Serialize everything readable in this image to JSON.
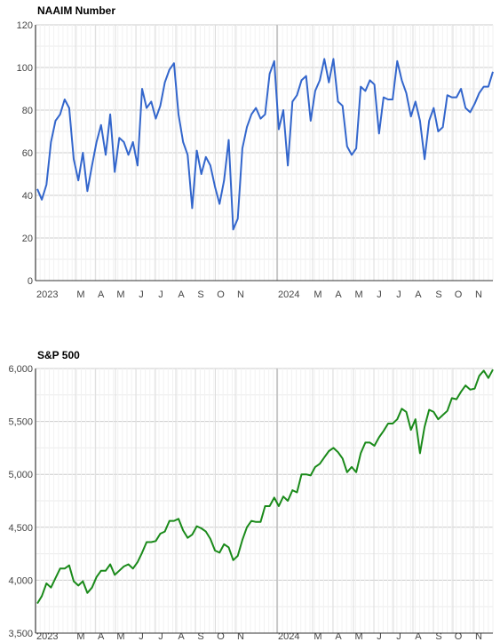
{
  "chart_data": [
    {
      "type": "line",
      "title": "NAAIM Number",
      "color": "#3366cc",
      "ylim": [
        0,
        120
      ],
      "yticks": [
        "0",
        "20",
        "40",
        "60",
        "80",
        "100",
        "120"
      ],
      "xticks": [
        "2023",
        "M",
        "A",
        "M",
        "J",
        "J",
        "A",
        "S",
        "O",
        "N",
        "2024",
        "M",
        "A",
        "M",
        "J",
        "J",
        "A",
        "S",
        "O",
        "N"
      ],
      "grid": true,
      "values": [
        43,
        38,
        45,
        65,
        75,
        78,
        85,
        81,
        57,
        47,
        60,
        42,
        54,
        65,
        73,
        59,
        78,
        51,
        67,
        65,
        59,
        65,
        54,
        90,
        81,
        84,
        76,
        82,
        93,
        99,
        102,
        78,
        65,
        59,
        34,
        61,
        50,
        58,
        54,
        44,
        36,
        47,
        66,
        24,
        29,
        62,
        72,
        78,
        81,
        76,
        78,
        97,
        103,
        71,
        80,
        54,
        84,
        87,
        94,
        96,
        75,
        89,
        94,
        104,
        93,
        104,
        84,
        82,
        63,
        59,
        62,
        91,
        89,
        94,
        92,
        69,
        86,
        85,
        85,
        103,
        94,
        88,
        77,
        84,
        75,
        57,
        75,
        81,
        70,
        72,
        87,
        86,
        86,
        90,
        81,
        79,
        83,
        88,
        91,
        91,
        98
      ]
    },
    {
      "type": "line",
      "title": "S&P 500",
      "color": "#1a8a1a",
      "ylim": [
        3500,
        6000
      ],
      "yticks": [
        "3,500",
        "4,000",
        "4,500",
        "5,000",
        "5,500",
        "6,000"
      ],
      "xticks": [
        "2023",
        "M",
        "A",
        "M",
        "J",
        "J",
        "A",
        "S",
        "O",
        "N",
        "2024",
        "M",
        "A",
        "M",
        "J",
        "J",
        "A",
        "S",
        "O",
        "N"
      ],
      "grid": true,
      "values": [
        3780,
        3850,
        3970,
        3930,
        4020,
        4110,
        4110,
        4140,
        3990,
        3950,
        3990,
        3880,
        3930,
        4030,
        4090,
        4090,
        4150,
        4050,
        4090,
        4130,
        4150,
        4110,
        4170,
        4260,
        4360,
        4360,
        4370,
        4440,
        4460,
        4560,
        4560,
        4580,
        4470,
        4400,
        4430,
        4510,
        4490,
        4460,
        4390,
        4280,
        4260,
        4340,
        4310,
        4190,
        4230,
        4380,
        4500,
        4560,
        4550,
        4550,
        4700,
        4700,
        4780,
        4700,
        4790,
        4750,
        4850,
        4830,
        5000,
        5000,
        4990,
        5070,
        5100,
        5160,
        5220,
        5250,
        5210,
        5150,
        5020,
        5070,
        5020,
        5200,
        5300,
        5300,
        5270,
        5350,
        5410,
        5480,
        5480,
        5520,
        5620,
        5590,
        5420,
        5520,
        5200,
        5450,
        5610,
        5590,
        5520,
        5560,
        5600,
        5720,
        5710,
        5780,
        5840,
        5800,
        5810,
        5930,
        5980,
        5910,
        5990
      ]
    }
  ]
}
